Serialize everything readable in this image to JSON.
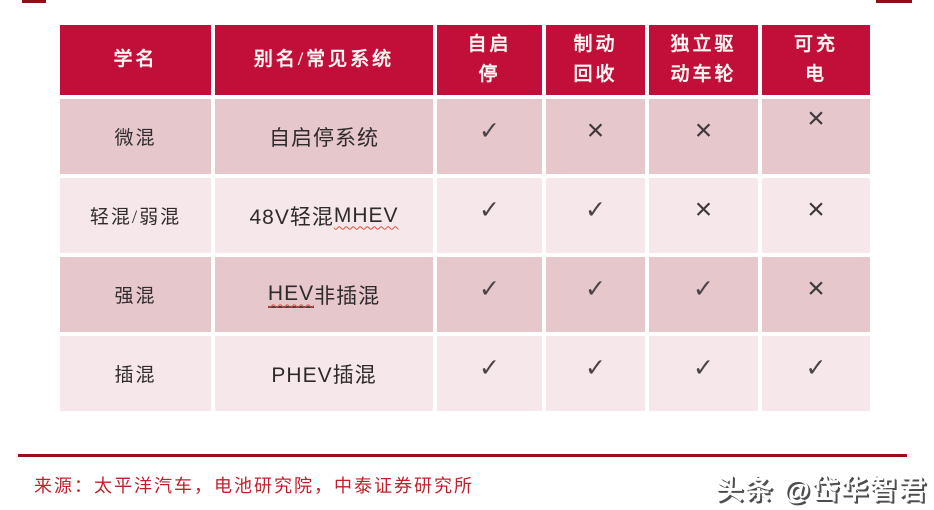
{
  "colors": {
    "header_bg": "#c20f39",
    "row_dark_pink": "#e6c7cc",
    "row_light_pink": "#f6e8ea",
    "footer_rule": "#9a1013",
    "source_text": "#c0202c",
    "corner_mark": "#8c1118"
  },
  "table": {
    "headers": [
      "学名",
      "别名/常见系统",
      "自启\n停",
      "制动\n回收",
      "独立驱\n动车轮",
      "可充\n电"
    ],
    "check_glyph": "✓",
    "cross_glyph": "×",
    "rows": [
      {
        "name": "微混",
        "alias": [
          {
            "text": "自启停系统",
            "style": "plain"
          }
        ],
        "marks": [
          "check",
          "cross",
          "cross",
          "cross"
        ]
      },
      {
        "name": "轻混/弱混",
        "alias": [
          {
            "text": "48V轻混 ",
            "style": "plain"
          },
          {
            "text": "MHEV",
            "style": "wavy"
          }
        ],
        "marks": [
          "check",
          "check",
          "cross",
          "cross"
        ]
      },
      {
        "name": "强混",
        "alias": [
          {
            "text": "HEV",
            "style": "link-wavy"
          },
          {
            "text": "非插混",
            "style": "plain"
          }
        ],
        "marks": [
          "check",
          "check",
          "check",
          "cross"
        ]
      },
      {
        "name": "插混",
        "alias": [
          {
            "text": "PHEV插混",
            "style": "plain"
          }
        ],
        "marks": [
          "check",
          "check",
          "check",
          "check"
        ]
      }
    ]
  },
  "footer": {
    "source": "来源：太平洋汽车，电池研究院，中泰证券研究所"
  },
  "watermark": {
    "text": "头条 @岱华智君"
  }
}
